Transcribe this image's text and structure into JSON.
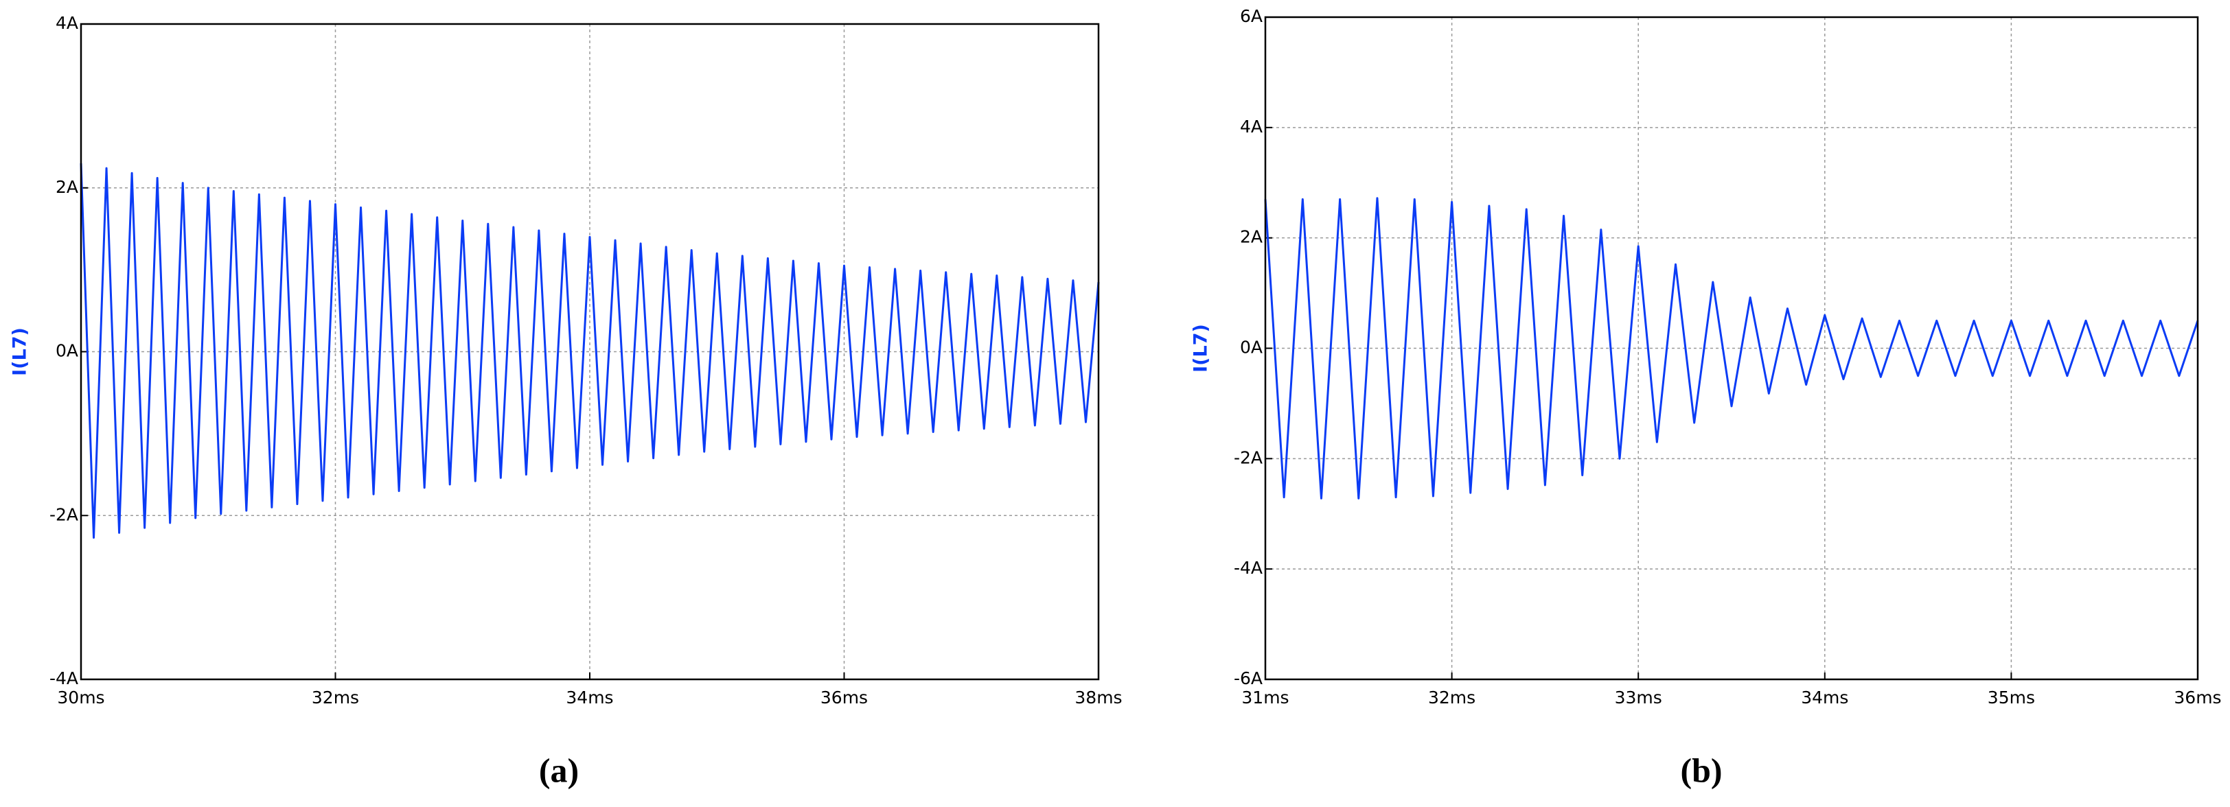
{
  "chart_data": [
    {
      "type": "line",
      "ylabel": "I(L7)",
      "caption": "(a)",
      "color": "#0b3cf5",
      "grid": true,
      "xlim": [
        30,
        38
      ],
      "ylim": [
        -4,
        4
      ],
      "xticks": [
        {
          "value": 30,
          "label": "30ms"
        },
        {
          "value": 32,
          "label": "32ms"
        },
        {
          "value": 34,
          "label": "34ms"
        },
        {
          "value": 36,
          "label": "36ms"
        },
        {
          "value": 38,
          "label": "38ms"
        }
      ],
      "yticks": [
        {
          "value": -4,
          "label": "-4A"
        },
        {
          "value": -2,
          "label": "-2A"
        },
        {
          "value": 0,
          "label": "0A"
        },
        {
          "value": 2,
          "label": "2A"
        },
        {
          "value": 4,
          "label": "4A"
        }
      ],
      "x": [
        30.0,
        30.1,
        30.2,
        30.3,
        30.4,
        30.5,
        30.6,
        30.7,
        30.8,
        30.9,
        31.0,
        31.1,
        31.2,
        31.3,
        31.4,
        31.5,
        31.6,
        31.7,
        31.8,
        31.9,
        32.0,
        32.1,
        32.2,
        32.3,
        32.4,
        32.5,
        32.6,
        32.7,
        32.8,
        32.9,
        33.0,
        33.1,
        33.2,
        33.3,
        33.4,
        33.5,
        33.6,
        33.7,
        33.8,
        33.9,
        34.0,
        34.1,
        34.2,
        34.3,
        34.4,
        34.5,
        34.6,
        34.7,
        34.8,
        34.9,
        35.0,
        35.1,
        35.2,
        35.3,
        35.4,
        35.5,
        35.6,
        35.7,
        35.8,
        35.9,
        36.0,
        36.1,
        36.2,
        36.3,
        36.4,
        36.5,
        36.6,
        36.7,
        36.8,
        36.9,
        37.0,
        37.1,
        37.2,
        37.3,
        37.4,
        37.5,
        37.6,
        37.7,
        37.8,
        37.9,
        38.0
      ],
      "values": [
        2.3,
        -2.27,
        2.24,
        -2.21,
        2.18,
        -2.15,
        2.12,
        -2.09,
        2.06,
        -2.03,
        2.0,
        -1.98,
        1.96,
        -1.94,
        1.92,
        -1.9,
        1.88,
        -1.86,
        1.84,
        -1.82,
        1.8,
        -1.78,
        1.76,
        -1.74,
        1.72,
        -1.7,
        1.68,
        -1.66,
        1.64,
        -1.62,
        1.6,
        -1.58,
        1.56,
        -1.54,
        1.52,
        -1.5,
        1.48,
        -1.46,
        1.44,
        -1.42,
        1.4,
        -1.38,
        1.36,
        -1.34,
        1.32,
        -1.3,
        1.28,
        -1.26,
        1.24,
        -1.22,
        1.2,
        -1.19,
        1.17,
        -1.16,
        1.14,
        -1.13,
        1.11,
        -1.1,
        1.08,
        -1.07,
        1.05,
        -1.04,
        1.03,
        -1.02,
        1.01,
        -1.0,
        0.99,
        -0.98,
        0.97,
        -0.96,
        0.95,
        -0.94,
        0.93,
        -0.92,
        0.91,
        -0.9,
        0.89,
        -0.88,
        0.87,
        -0.86,
        0.85
      ]
    },
    {
      "type": "line",
      "ylabel": "I(L7)",
      "caption": "(b)",
      "color": "#0b3cf5",
      "grid": true,
      "xlim": [
        31,
        36
      ],
      "ylim": [
        -6,
        6
      ],
      "xticks": [
        {
          "value": 31,
          "label": "31ms"
        },
        {
          "value": 32,
          "label": "32ms"
        },
        {
          "value": 33,
          "label": "33ms"
        },
        {
          "value": 34,
          "label": "34ms"
        },
        {
          "value": 35,
          "label": "35ms"
        },
        {
          "value": 36,
          "label": "36ms"
        }
      ],
      "yticks": [
        {
          "value": -6,
          "label": "-6A"
        },
        {
          "value": -4,
          "label": "-4A"
        },
        {
          "value": -2,
          "label": "-2A"
        },
        {
          "value": 0,
          "label": "0A"
        },
        {
          "value": 2,
          "label": "2A"
        },
        {
          "value": 4,
          "label": "4A"
        },
        {
          "value": 6,
          "label": "6A"
        }
      ],
      "x": [
        31.0,
        31.1,
        31.2,
        31.3,
        31.4,
        31.5,
        31.6,
        31.7,
        31.8,
        31.9,
        32.0,
        32.1,
        32.2,
        32.3,
        32.4,
        32.5,
        32.6,
        32.7,
        32.8,
        32.9,
        33.0,
        33.1,
        33.2,
        33.3,
        33.4,
        33.5,
        33.6,
        33.7,
        33.8,
        33.9,
        34.0,
        34.1,
        34.2,
        34.3,
        34.4,
        34.5,
        34.6,
        34.7,
        34.8,
        34.9,
        35.0,
        35.1,
        35.2,
        35.3,
        35.4,
        35.5,
        35.6,
        35.7,
        35.8,
        35.9,
        36.0
      ],
      "values": [
        2.7,
        -2.7,
        2.7,
        -2.72,
        2.7,
        -2.72,
        2.72,
        -2.7,
        2.7,
        -2.68,
        2.65,
        -2.62,
        2.58,
        -2.55,
        2.52,
        -2.48,
        2.4,
        -2.3,
        2.15,
        -2.0,
        1.85,
        -1.7,
        1.52,
        -1.35,
        1.2,
        -1.05,
        0.92,
        -0.82,
        0.72,
        -0.66,
        0.6,
        -0.56,
        0.54,
        -0.52,
        0.5,
        -0.5,
        0.5,
        -0.5,
        0.5,
        -0.5,
        0.5,
        -0.5,
        0.5,
        -0.5,
        0.5,
        -0.5,
        0.5,
        -0.5,
        0.5,
        -0.5,
        0.5
      ]
    }
  ]
}
